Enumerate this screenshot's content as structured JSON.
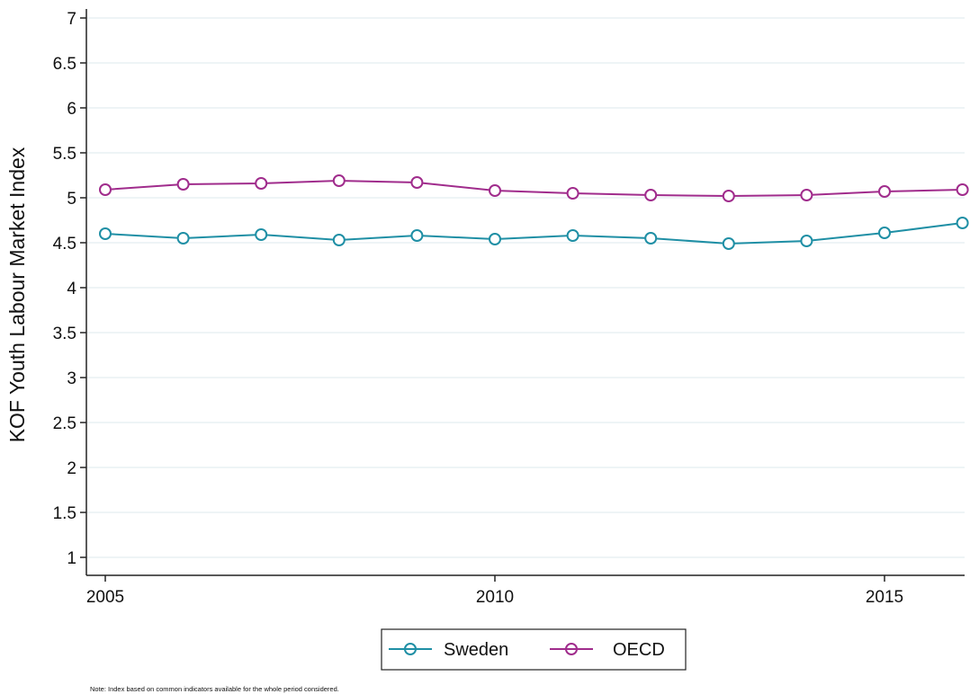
{
  "chart_data": {
    "type": "line",
    "ylabel": "KOF Youth Labour Market Index",
    "xlabel": "",
    "x": [
      2005,
      2006,
      2007,
      2008,
      2009,
      2010,
      2011,
      2012,
      2013,
      2014,
      2015,
      2016
    ],
    "x_ticks": [
      2005,
      2010,
      2015
    ],
    "xlim": [
      2005,
      2016.2
    ],
    "ylim": [
      1,
      7
    ],
    "y_ticks": [
      1,
      1.5,
      2,
      2.5,
      3,
      3.5,
      4,
      4.5,
      5,
      5.5,
      6,
      6.5,
      7
    ],
    "grid": true,
    "legend_position": "bottom-center",
    "series": [
      {
        "name": "Sweden",
        "color": "#1f8fa5",
        "values": [
          4.6,
          4.55,
          4.59,
          4.53,
          4.58,
          4.54,
          4.58,
          4.55,
          4.49,
          4.52,
          4.61,
          4.72
        ]
      },
      {
        "name": "OECD",
        "color": "#a02c8c",
        "values": [
          5.09,
          5.15,
          5.16,
          5.19,
          5.17,
          5.08,
          5.05,
          5.03,
          5.02,
          5.03,
          5.07,
          5.09
        ]
      }
    ],
    "note": "Note: Index based on common indicators available for the whole period considered."
  }
}
